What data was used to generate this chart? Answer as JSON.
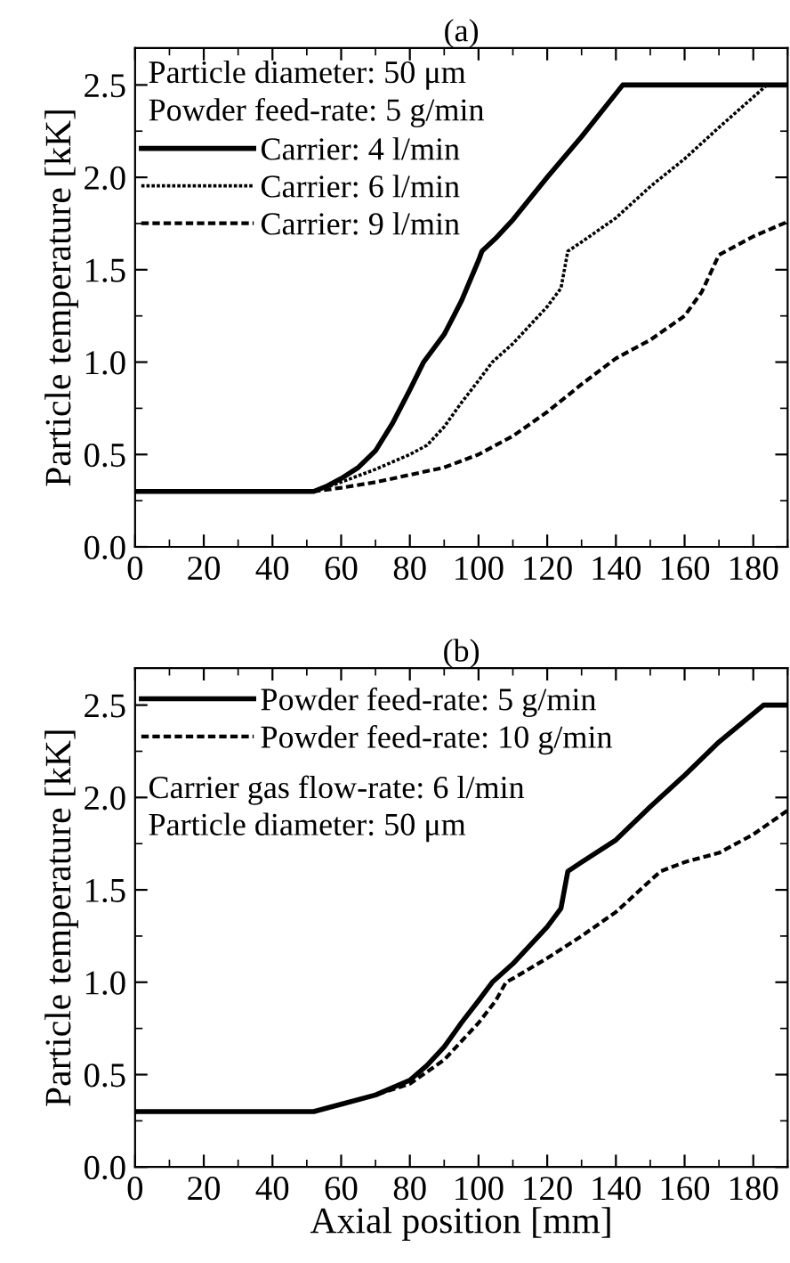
{
  "chart_data": [
    {
      "type": "line",
      "title": "(a)",
      "ylabel": "Particle temperature [kK]",
      "xlim": [
        0,
        190
      ],
      "ylim": [
        0,
        2.7
      ],
      "xticks": [
        0,
        20,
        40,
        60,
        80,
        100,
        120,
        140,
        160,
        180
      ],
      "yticks": [
        {
          "value": 0,
          "label": "0.0"
        },
        0.5,
        {
          "value": 1,
          "label": "1.0"
        },
        1.5,
        {
          "value": 2,
          "label": "2.0"
        },
        2.5
      ],
      "grid": false,
      "legend": "top left",
      "marker": "none",
      "annotations": [
        "Particle diameter: 50 μm",
        "Powder feed-rate: 5 g/min"
      ],
      "series": [
        {
          "name": "Carrier: 4 l/min",
          "color": "#000000",
          "line_style": "solid",
          "x": [
            0,
            52,
            56,
            60,
            65,
            70,
            75,
            80,
            84,
            90,
            95,
            100,
            101,
            105,
            110,
            120,
            130,
            142,
            190
          ],
          "values": [
            0.3,
            0.3,
            0.33,
            0.37,
            0.43,
            0.52,
            0.67,
            0.85,
            1.0,
            1.15,
            1.33,
            1.55,
            1.6,
            1.67,
            1.77,
            2.0,
            2.22,
            2.5,
            2.5
          ]
        },
        {
          "name": "Carrier: 6 l/min",
          "color": "#000000",
          "line_style": "dotted",
          "x": [
            0,
            52,
            60,
            70,
            80,
            85,
            90,
            95,
            100,
            104,
            110,
            115,
            120,
            124,
            126,
            130,
            140,
            150,
            160,
            170,
            184,
            190
          ],
          "values": [
            0.3,
            0.3,
            0.35,
            0.42,
            0.5,
            0.55,
            0.65,
            0.78,
            0.9,
            1.0,
            1.1,
            1.2,
            1.3,
            1.4,
            1.6,
            1.65,
            1.78,
            1.95,
            2.1,
            2.27,
            2.5,
            2.5
          ]
        },
        {
          "name": "Carrier: 9 l/min",
          "color": "#000000",
          "line_style": "dashed",
          "x": [
            0,
            52,
            60,
            70,
            80,
            90,
            100,
            110,
            120,
            130,
            140,
            150,
            160,
            165,
            170,
            175,
            180,
            190
          ],
          "values": [
            0.3,
            0.3,
            0.32,
            0.35,
            0.39,
            0.43,
            0.5,
            0.6,
            0.73,
            0.88,
            1.02,
            1.12,
            1.25,
            1.38,
            1.58,
            1.63,
            1.68,
            1.76
          ]
        }
      ]
    },
    {
      "type": "line",
      "title": "(b)",
      "xlabel": "Axial position [mm]",
      "ylabel": "Particle temperature [kK]",
      "xlim": [
        0,
        190
      ],
      "ylim": [
        0,
        2.7
      ],
      "xticks": [
        0,
        20,
        40,
        60,
        80,
        100,
        120,
        140,
        160,
        180
      ],
      "yticks": [
        {
          "value": 0,
          "label": "0.0"
        },
        0.5,
        {
          "value": 1,
          "label": "1.0"
        },
        1.5,
        {
          "value": 2,
          "label": "2.0"
        },
        2.5
      ],
      "grid": false,
      "legend": "top left",
      "marker": "none",
      "annotations": [
        "Carrier gas flow-rate: 6 l/min",
        "Particle diameter: 50 μm"
      ],
      "series": [
        {
          "name": "Powder feed-rate: 5 g/min",
          "color": "#000000",
          "line_style": "solid",
          "x": [
            0,
            52,
            60,
            70,
            80,
            85,
            90,
            95,
            100,
            104,
            110,
            115,
            120,
            124,
            126,
            130,
            140,
            150,
            160,
            170,
            183,
            190
          ],
          "values": [
            0.3,
            0.3,
            0.34,
            0.39,
            0.47,
            0.55,
            0.65,
            0.78,
            0.9,
            1.0,
            1.1,
            1.2,
            1.3,
            1.4,
            1.6,
            1.65,
            1.77,
            1.95,
            2.12,
            2.3,
            2.5,
            2.5
          ]
        },
        {
          "name": "Powder feed-rate: 10 g/min",
          "color": "#000000",
          "line_style": "dashed",
          "x": [
            0,
            52,
            60,
            70,
            80,
            90,
            100,
            105,
            108,
            110,
            120,
            130,
            140,
            150,
            153,
            160,
            170,
            180,
            190
          ],
          "values": [
            0.3,
            0.3,
            0.34,
            0.39,
            0.45,
            0.58,
            0.78,
            0.9,
            1.0,
            1.02,
            1.13,
            1.25,
            1.38,
            1.55,
            1.6,
            1.65,
            1.7,
            1.8,
            1.93
          ]
        }
      ]
    }
  ]
}
